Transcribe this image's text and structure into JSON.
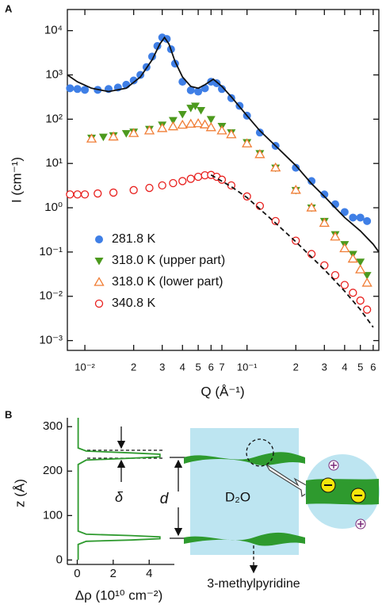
{
  "chart_data": [
    {
      "type": "scatter",
      "label": "A",
      "xlabel": "Q (Å⁻¹)",
      "ylabel": "I (cm⁻¹)",
      "xscale": "log",
      "yscale": "log",
      "xlim": [
        0.0078,
        0.65
      ],
      "ylim": [
        0.0006,
        30000
      ],
      "xticks": [
        {
          "value": 0.01,
          "label": "10⁻²"
        },
        {
          "value": 0.02,
          "label": "2"
        },
        {
          "value": 0.03,
          "label": "3"
        },
        {
          "value": 0.04,
          "label": "4"
        },
        {
          "value": 0.05,
          "label": "5"
        },
        {
          "value": 0.06,
          "label": "6"
        },
        {
          "value": 0.07,
          "label": "7"
        },
        {
          "value": 0.1,
          "label": "10⁻¹"
        },
        {
          "value": 0.2,
          "label": "2"
        },
        {
          "value": 0.3,
          "label": "3"
        },
        {
          "value": 0.4,
          "label": "4"
        },
        {
          "value": 0.5,
          "label": "5"
        },
        {
          "value": 0.6,
          "label": "6"
        }
      ],
      "yticks": [
        {
          "value": 0.001,
          "label": "10⁻³"
        },
        {
          "value": 0.01,
          "label": "10⁻²"
        },
        {
          "value": 0.1,
          "label": "10⁻¹"
        },
        {
          "value": 1,
          "label": "10⁰"
        },
        {
          "value": 10,
          "label": "10¹"
        },
        {
          "value": 100,
          "label": "10²"
        },
        {
          "value": 1000,
          "label": "10³"
        },
        {
          "value": 10000,
          "label": "10⁴"
        }
      ],
      "legend": "lower left",
      "series": [
        {
          "name": "281.8 K",
          "color": "#3f7fe6",
          "marker": "circle-filled",
          "x": [
            0.0081,
            0.009,
            0.01,
            0.012,
            0.014,
            0.016,
            0.018,
            0.02,
            0.022,
            0.024,
            0.026,
            0.028,
            0.03,
            0.032,
            0.034,
            0.036,
            0.04,
            0.045,
            0.05,
            0.055,
            0.06,
            0.065,
            0.07,
            0.08,
            0.09,
            0.1,
            0.12,
            0.15,
            0.2,
            0.25,
            0.3,
            0.35,
            0.4,
            0.45,
            0.5,
            0.55
          ],
          "values": [
            500,
            480,
            460,
            460,
            480,
            520,
            600,
            750,
            1000,
            1500,
            2600,
            4500,
            7000,
            6500,
            3800,
            1800,
            700,
            450,
            420,
            500,
            700,
            650,
            480,
            300,
            200,
            120,
            50,
            25,
            8,
            4,
            2,
            1.2,
            0.8,
            0.6,
            0.6,
            0.5
          ]
        },
        {
          "name": "318.0 K (upper part)",
          "color": "#4c9a1e",
          "marker": "triangle-down-filled",
          "x": [
            0.011,
            0.013,
            0.015,
            0.018,
            0.02,
            0.025,
            0.03,
            0.035,
            0.04,
            0.045,
            0.048,
            0.052,
            0.06,
            0.07,
            0.08,
            0.1,
            0.12,
            0.15,
            0.2,
            0.25,
            0.3,
            0.35,
            0.4,
            0.45,
            0.5,
            0.55
          ],
          "values": [
            38,
            40,
            43,
            48,
            52,
            60,
            75,
            95,
            130,
            180,
            200,
            160,
            100,
            70,
            50,
            30,
            17,
            8,
            2.5,
            1,
            0.5,
            0.25,
            0.15,
            0.09,
            0.06,
            0.03
          ]
        },
        {
          "name": "318.0 K (lower part)",
          "color": "#f07d35",
          "marker": "triangle-up-open",
          "x": [
            0.011,
            0.015,
            0.02,
            0.025,
            0.03,
            0.035,
            0.04,
            0.045,
            0.05,
            0.055,
            0.06,
            0.07,
            0.08,
            0.1,
            0.12,
            0.15,
            0.2,
            0.25,
            0.3,
            0.35,
            0.4,
            0.45,
            0.5,
            0.55
          ],
          "values": [
            36,
            40,
            48,
            55,
            62,
            68,
            74,
            78,
            80,
            75,
            65,
            55,
            45,
            28,
            16,
            8,
            2.5,
            1,
            0.45,
            0.22,
            0.12,
            0.07,
            0.04,
            0.02
          ]
        },
        {
          "name": "340.8 K",
          "color": "#e8201e",
          "marker": "circle-open",
          "x": [
            0.0081,
            0.009,
            0.01,
            0.012,
            0.015,
            0.02,
            0.025,
            0.03,
            0.035,
            0.04,
            0.045,
            0.05,
            0.055,
            0.06,
            0.065,
            0.07,
            0.08,
            0.1,
            0.12,
            0.15,
            0.2,
            0.25,
            0.3,
            0.35,
            0.4,
            0.45,
            0.5,
            0.55
          ],
          "values": [
            2,
            2,
            2,
            2.1,
            2.2,
            2.5,
            2.8,
            3.2,
            3.6,
            4,
            4.5,
            5,
            5.4,
            5.5,
            5,
            4.3,
            3.2,
            1.8,
            1.1,
            0.5,
            0.18,
            0.09,
            0.05,
            0.03,
            0.018,
            0.012,
            0.008,
            0.005
          ]
        }
      ],
      "fits": [
        {
          "color": "#111111",
          "dash": false,
          "x": [
            0.0078,
            0.009,
            0.011,
            0.014,
            0.018,
            0.022,
            0.026,
            0.029,
            0.031,
            0.033,
            0.036,
            0.04,
            0.045,
            0.05,
            0.055,
            0.062,
            0.07,
            0.08,
            0.1,
            0.12,
            0.15,
            0.2,
            0.25,
            0.3,
            0.35,
            0.4,
            0.5,
            0.6,
            0.65
          ],
          "values": [
            1000,
            700,
            500,
            420,
            500,
            900,
            2200,
            5000,
            7000,
            5000,
            2000,
            900,
            550,
            500,
            600,
            800,
            550,
            320,
            120,
            55,
            25,
            9,
            3.5,
            1.8,
            1,
            0.6,
            0.3,
            0.15,
            0.1
          ]
        },
        {
          "color": "#111111",
          "dash": true,
          "x": [
            0.06,
            0.08,
            0.1,
            0.15,
            0.2,
            0.3,
            0.4,
            0.5,
            0.6
          ],
          "values": [
            5.5,
            3,
            1.7,
            0.45,
            0.17,
            0.04,
            0.013,
            0.005,
            0.002
          ]
        }
      ]
    },
    {
      "type": "line",
      "label": "B",
      "xlabel": "Δρ (10¹⁰ cm⁻²)",
      "ylabel": "z (Å)",
      "xlim": [
        -0.55,
        5.4
      ],
      "ylim": [
        -10,
        320
      ],
      "xticks": [
        0,
        2,
        4
      ],
      "yticks": [
        0,
        100,
        200,
        300
      ],
      "series": [
        {
          "color": "#2e9a2e",
          "x": [
            0.05,
            0.05,
            0.5,
            3,
            4.6,
            4.6,
            3,
            0.5,
            0.05,
            0.05,
            0.5,
            3,
            4.6,
            4.6,
            3,
            0.5,
            0.05,
            0.05
          ],
          "values": [
            0,
            35,
            42,
            45,
            48,
            52,
            55,
            58,
            65,
            215,
            225,
            229,
            232,
            238,
            241,
            245,
            252,
            320
          ]
        }
      ],
      "annotations": [
        "δ",
        "d",
        "D₂O",
        "3-methylpyridine"
      ]
    }
  ]
}
